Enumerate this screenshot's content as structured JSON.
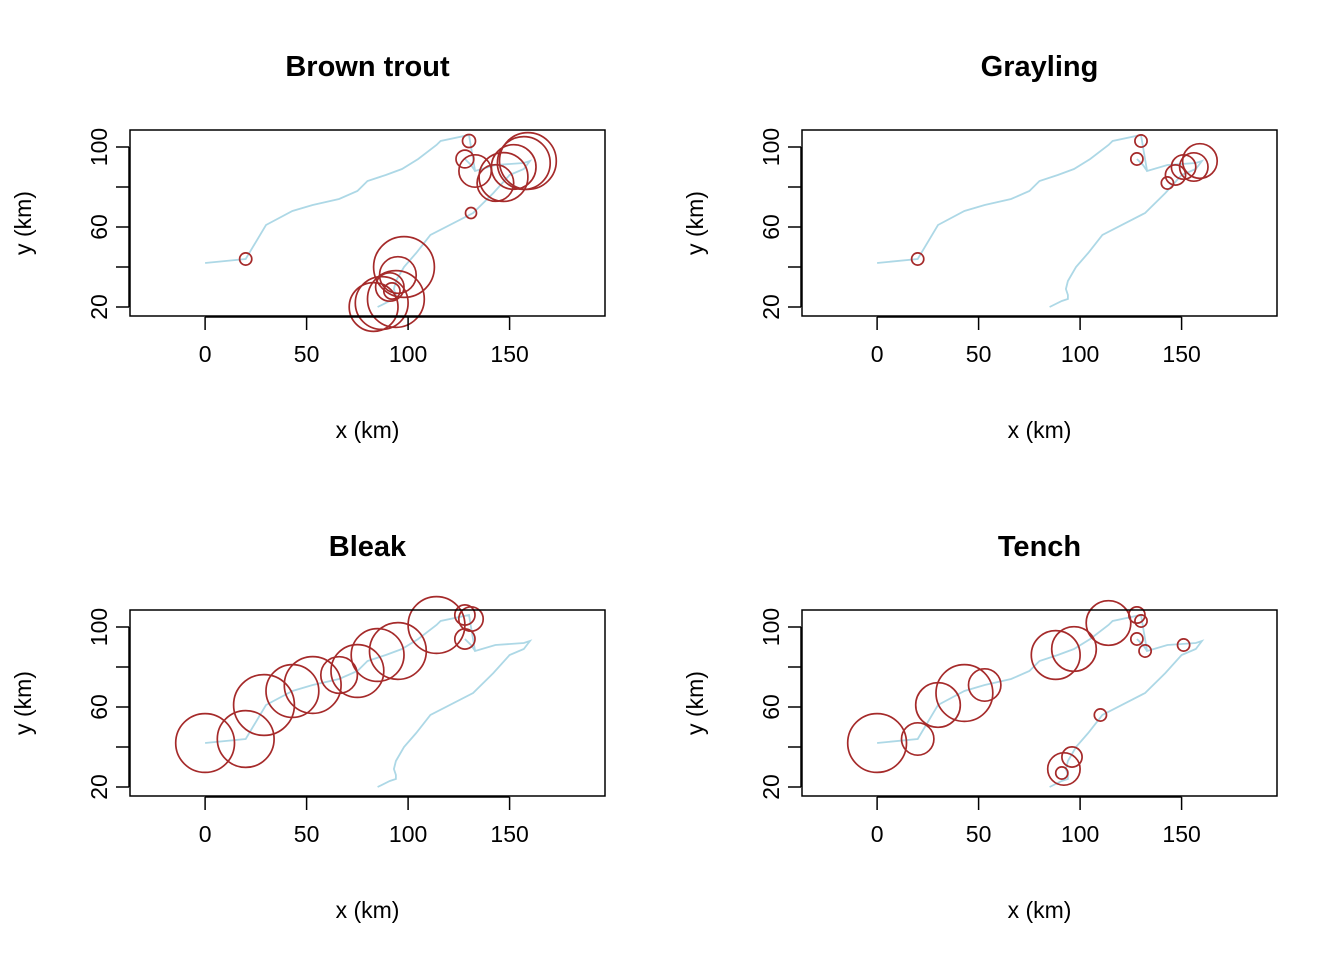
{
  "colors": {
    "river": "#add8e6",
    "circle": "#a52a2a",
    "axis": "#000000"
  },
  "chart_data": [
    {
      "type": "scatter",
      "title": "Brown trout",
      "xlabel": "x (km)",
      "ylabel": "y (km)",
      "xlim": [
        -37,
        197
      ],
      "ylim": [
        15.5,
        108.5
      ],
      "xticks": [
        0,
        50,
        100,
        150
      ],
      "yticks": [
        20,
        40,
        60,
        80,
        100
      ],
      "ytick_labels": [
        "20",
        "",
        "60",
        "",
        "100"
      ],
      "marker": "circle",
      "points": [
        {
          "x": 20,
          "y": 44,
          "r": 3
        },
        {
          "x": 130,
          "y": 103,
          "r": 3.2
        },
        {
          "x": 128,
          "y": 94,
          "r": 4.4
        },
        {
          "x": 131,
          "y": 67,
          "r": 2.7
        },
        {
          "x": 133,
          "y": 88,
          "r": 8
        },
        {
          "x": 143,
          "y": 82,
          "r": 9
        },
        {
          "x": 147,
          "y": 85,
          "r": 12
        },
        {
          "x": 152,
          "y": 90,
          "r": 11
        },
        {
          "x": 157,
          "y": 92,
          "r": 13
        },
        {
          "x": 159,
          "y": 93,
          "r": 14
        },
        {
          "x": 98,
          "y": 40,
          "r": 15
        },
        {
          "x": 95,
          "y": 36,
          "r": 9
        },
        {
          "x": 92,
          "y": 28,
          "r": 4
        },
        {
          "x": 91,
          "y": 30,
          "r": 7
        },
        {
          "x": 94,
          "y": 24,
          "r": 14
        },
        {
          "x": 87,
          "y": 22,
          "r": 13
        },
        {
          "x": 83,
          "y": 20,
          "r": 12
        }
      ]
    },
    {
      "type": "scatter",
      "title": "Grayling",
      "xlabel": "x (km)",
      "ylabel": "y (km)",
      "xlim": [
        -37,
        197
      ],
      "ylim": [
        15.5,
        108.5
      ],
      "xticks": [
        0,
        50,
        100,
        150
      ],
      "yticks": [
        20,
        40,
        60,
        80,
        100
      ],
      "ytick_labels": [
        "20",
        "",
        "60",
        "",
        "100"
      ],
      "marker": "circle",
      "points": [
        {
          "x": 20,
          "y": 44,
          "r": 3
        },
        {
          "x": 130,
          "y": 103,
          "r": 3
        },
        {
          "x": 128,
          "y": 94,
          "r": 3
        },
        {
          "x": 143,
          "y": 82,
          "r": 3
        },
        {
          "x": 147,
          "y": 86,
          "r": 5
        },
        {
          "x": 151,
          "y": 90,
          "r": 6
        },
        {
          "x": 156,
          "y": 90,
          "r": 7
        },
        {
          "x": 159,
          "y": 93,
          "r": 8.5
        }
      ]
    },
    {
      "type": "scatter",
      "title": "Bleak",
      "xlabel": "x (km)",
      "ylabel": "y (km)",
      "xlim": [
        -37,
        197
      ],
      "ylim": [
        15.5,
        108.5
      ],
      "xticks": [
        0,
        50,
        100,
        150
      ],
      "yticks": [
        20,
        40,
        60,
        80,
        100
      ],
      "ytick_labels": [
        "20",
        "",
        "60",
        "",
        "100"
      ],
      "marker": "circle",
      "points": [
        {
          "x": 0,
          "y": 42,
          "r": 14.5
        },
        {
          "x": 20,
          "y": 44,
          "r": 14
        },
        {
          "x": 29,
          "y": 61,
          "r": 15
        },
        {
          "x": 43,
          "y": 68,
          "r": 13
        },
        {
          "x": 53,
          "y": 71,
          "r": 14
        },
        {
          "x": 66,
          "y": 76,
          "r": 9
        },
        {
          "x": 75,
          "y": 78,
          "r": 13
        },
        {
          "x": 85,
          "y": 86,
          "r": 13
        },
        {
          "x": 95,
          "y": 88,
          "r": 14
        },
        {
          "x": 114,
          "y": 101,
          "r": 14
        },
        {
          "x": 128,
          "y": 106,
          "r": 5
        },
        {
          "x": 131,
          "y": 104,
          "r": 6
        },
        {
          "x": 128,
          "y": 94,
          "r": 5
        }
      ]
    },
    {
      "type": "scatter",
      "title": "Tench",
      "xlabel": "x (km)",
      "ylabel": "y (km)",
      "xlim": [
        -37,
        197
      ],
      "ylim": [
        15.5,
        108.5
      ],
      "xticks": [
        0,
        50,
        100,
        150
      ],
      "yticks": [
        20,
        40,
        60,
        80,
        100
      ],
      "ytick_labels": [
        "20",
        "",
        "60",
        "",
        "100"
      ],
      "marker": "circle",
      "points": [
        {
          "x": 0,
          "y": 42,
          "r": 14.5
        },
        {
          "x": 20,
          "y": 44,
          "r": 8
        },
        {
          "x": 30,
          "y": 61,
          "r": 11
        },
        {
          "x": 43,
          "y": 67,
          "r": 14
        },
        {
          "x": 53,
          "y": 71,
          "r": 8
        },
        {
          "x": 88,
          "y": 86,
          "r": 12
        },
        {
          "x": 97,
          "y": 89,
          "r": 11
        },
        {
          "x": 114,
          "y": 102,
          "r": 11
        },
        {
          "x": 128,
          "y": 106,
          "r": 4
        },
        {
          "x": 130,
          "y": 103,
          "r": 3
        },
        {
          "x": 128,
          "y": 94,
          "r": 3
        },
        {
          "x": 132,
          "y": 88,
          "r": 3
        },
        {
          "x": 151,
          "y": 91,
          "r": 3
        },
        {
          "x": 110,
          "y": 56,
          "r": 3
        },
        {
          "x": 96,
          "y": 35,
          "r": 5
        },
        {
          "x": 92,
          "y": 29,
          "r": 8
        },
        {
          "x": 91,
          "y": 27,
          "r": 3
        }
      ]
    }
  ],
  "river_network": [
    [
      [
        0,
        42
      ],
      [
        20,
        44
      ],
      [
        30,
        61
      ],
      [
        43,
        68
      ],
      [
        53,
        71
      ],
      [
        66,
        74
      ],
      [
        75,
        78
      ],
      [
        80,
        83
      ],
      [
        89,
        86
      ],
      [
        97,
        89
      ],
      [
        105,
        94
      ],
      [
        114,
        101
      ],
      [
        116,
        103
      ],
      [
        130,
        106
      ],
      [
        131,
        100
      ],
      [
        133,
        88
      ],
      [
        143,
        91
      ],
      [
        157,
        92
      ],
      [
        160,
        93
      ],
      [
        157,
        89
      ],
      [
        150,
        86
      ],
      [
        142,
        77
      ],
      [
        132,
        67
      ],
      [
        111,
        56
      ],
      [
        104,
        47
      ],
      [
        98,
        40
      ],
      [
        94,
        33
      ],
      [
        93,
        29
      ],
      [
        94,
        26
      ],
      [
        94,
        24
      ],
      [
        91,
        23
      ],
      [
        85,
        20
      ]
    ],
    [
      [
        128,
        94
      ],
      [
        131,
        91
      ],
      [
        133,
        88
      ]
    ]
  ]
}
